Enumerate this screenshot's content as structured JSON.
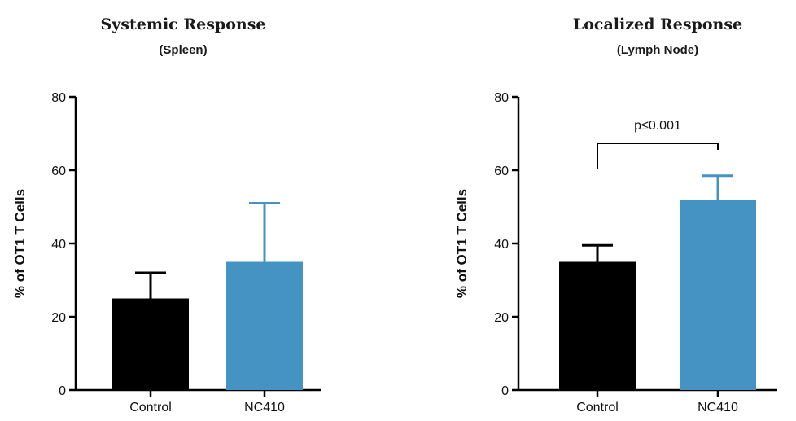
{
  "chart_data": [
    {
      "type": "bar",
      "title": "Systemic Response",
      "subtitle": "(Spleen)",
      "xlabel": "",
      "ylabel": "% of OT1 T Cells",
      "ylim": [
        0,
        80
      ],
      "yticks": [
        0,
        20,
        40,
        60,
        80
      ],
      "categories": [
        "Control",
        "NC410"
      ],
      "values": [
        25,
        35
      ],
      "errors": [
        7,
        16
      ],
      "colors": [
        "#000000",
        "#4593c2"
      ],
      "grid": false,
      "annotations": []
    },
    {
      "type": "bar",
      "title": "Localized Response",
      "subtitle": "(Lymph Node)",
      "xlabel": "",
      "ylabel": "% of OT1 T Cells",
      "ylim": [
        0,
        80
      ],
      "yticks": [
        0,
        20,
        40,
        60,
        80
      ],
      "categories": [
        "Control",
        "NC410"
      ],
      "values": [
        35,
        52
      ],
      "errors": [
        4.5,
        6.5
      ],
      "colors": [
        "#000000",
        "#4593c2"
      ],
      "grid": false,
      "annotations": [
        {
          "text": "p≤0.001",
          "between": [
            "Control",
            "NC410"
          ]
        }
      ]
    }
  ]
}
